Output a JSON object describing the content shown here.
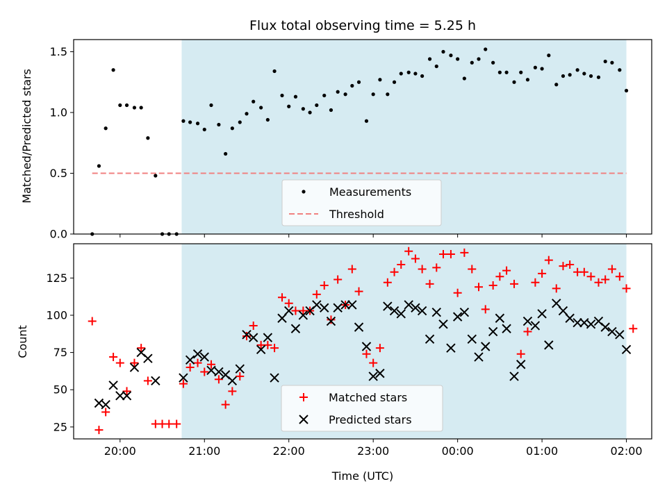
{
  "chart_data": {
    "title": "Flux total observing time = 5.25 h",
    "xlabel": "Time (UTC)",
    "x_unit": "hours UTC (past midnight continues as 24+)",
    "xlim": [
      19.45,
      26.3
    ],
    "x_ticks": [
      20,
      21,
      22,
      23,
      24,
      25,
      26
    ],
    "x_tick_labels": [
      "20:00",
      "21:00",
      "22:00",
      "23:00",
      "00:00",
      "01:00",
      "02:00"
    ],
    "shaded_span": {
      "x_start": 20.73,
      "x_end": 26.0,
      "color": "#add8e6"
    },
    "colors": {
      "shade": "#add8e6",
      "measurements": "#000000",
      "threshold": "#f08080",
      "matched": "#ff0000",
      "predicted": "#000000"
    },
    "panels": [
      {
        "type": "scatter",
        "ylabel": "Matched/Predicted stars",
        "ylim": [
          0,
          1.6
        ],
        "y_ticks": [
          0.0,
          0.5,
          1.0,
          1.5
        ],
        "y_tick_labels": [
          "0.0",
          "0.5",
          "1.0",
          "1.5"
        ],
        "legend": "lower center",
        "series": [
          {
            "name": "Measurements",
            "marker": "dot",
            "points": [
              [
                19.67,
                0.0
              ],
              [
                19.75,
                0.56
              ],
              [
                19.83,
                0.87
              ],
              [
                19.92,
                1.35
              ],
              [
                20.0,
                1.06
              ],
              [
                20.08,
                1.06
              ],
              [
                20.17,
                1.04
              ],
              [
                20.25,
                1.04
              ],
              [
                20.33,
                0.79
              ],
              [
                20.42,
                0.48
              ],
              [
                20.5,
                0.0
              ],
              [
                20.58,
                0.0
              ],
              [
                20.67,
                0.0
              ],
              [
                20.75,
                0.93
              ],
              [
                20.83,
                0.92
              ],
              [
                20.92,
                0.91
              ],
              [
                21.0,
                0.86
              ],
              [
                21.08,
                1.06
              ],
              [
                21.17,
                0.9
              ],
              [
                21.25,
                0.66
              ],
              [
                21.33,
                0.87
              ],
              [
                21.42,
                0.92
              ],
              [
                21.5,
                0.99
              ],
              [
                21.58,
                1.09
              ],
              [
                21.67,
                1.04
              ],
              [
                21.75,
                0.94
              ],
              [
                21.83,
                1.34
              ],
              [
                21.92,
                1.14
              ],
              [
                22.0,
                1.05
              ],
              [
                22.08,
                1.13
              ],
              [
                22.17,
                1.03
              ],
              [
                22.25,
                1.0
              ],
              [
                22.33,
                1.06
              ],
              [
                22.42,
                1.14
              ],
              [
                22.5,
                1.02
              ],
              [
                22.58,
                1.17
              ],
              [
                22.67,
                1.15
              ],
              [
                22.75,
                1.22
              ],
              [
                22.83,
                1.25
              ],
              [
                22.92,
                0.93
              ],
              [
                23.0,
                1.15
              ],
              [
                23.08,
                1.27
              ],
              [
                23.17,
                1.15
              ],
              [
                23.25,
                1.25
              ],
              [
                23.33,
                1.32
              ],
              [
                23.42,
                1.33
              ],
              [
                23.5,
                1.32
              ],
              [
                23.58,
                1.3
              ],
              [
                23.67,
                1.44
              ],
              [
                23.75,
                1.38
              ],
              [
                23.83,
                1.5
              ],
              [
                23.92,
                1.47
              ],
              [
                24.0,
                1.44
              ],
              [
                24.08,
                1.28
              ],
              [
                24.17,
                1.41
              ],
              [
                24.25,
                1.44
              ],
              [
                24.33,
                1.52
              ],
              [
                24.42,
                1.41
              ],
              [
                24.5,
                1.33
              ],
              [
                24.58,
                1.33
              ],
              [
                24.67,
                1.25
              ],
              [
                24.75,
                1.33
              ],
              [
                24.83,
                1.27
              ],
              [
                24.92,
                1.37
              ],
              [
                25.0,
                1.36
              ],
              [
                25.08,
                1.47
              ],
              [
                25.17,
                1.23
              ],
              [
                25.25,
                1.3
              ],
              [
                25.33,
                1.31
              ],
              [
                25.42,
                1.35
              ],
              [
                25.5,
                1.32
              ],
              [
                25.58,
                1.3
              ],
              [
                25.67,
                1.29
              ],
              [
                25.75,
                1.42
              ],
              [
                25.83,
                1.41
              ],
              [
                25.92,
                1.35
              ],
              [
                26.0,
                1.18
              ]
            ]
          },
          {
            "name": "Threshold",
            "marker": "dashed-line",
            "points": [
              [
                19.67,
                0.5
              ],
              [
                26.0,
                0.5
              ]
            ]
          }
        ]
      },
      {
        "type": "scatter",
        "ylabel": "Count",
        "ylim": [
          17,
          148
        ],
        "y_ticks": [
          25,
          50,
          75,
          100,
          125
        ],
        "y_tick_labels": [
          "25",
          "50",
          "75",
          "100",
          "125"
        ],
        "legend": "lower center",
        "series": [
          {
            "name": "Matched stars",
            "marker": "plus",
            "points": [
              [
                19.67,
                96
              ],
              [
                19.75,
                23
              ],
              [
                19.83,
                35
              ],
              [
                19.92,
                72
              ],
              [
                20.0,
                68
              ],
              [
                20.08,
                49
              ],
              [
                20.17,
                68
              ],
              [
                20.25,
                78
              ],
              [
                20.33,
                56
              ],
              [
                20.42,
                27
              ],
              [
                20.5,
                27
              ],
              [
                20.58,
                27
              ],
              [
                20.67,
                27
              ],
              [
                20.75,
                54
              ],
              [
                20.83,
                65
              ],
              [
                20.92,
                68
              ],
              [
                21.0,
                62
              ],
              [
                21.08,
                67
              ],
              [
                21.17,
                57
              ],
              [
                21.25,
                40
              ],
              [
                21.33,
                49
              ],
              [
                21.42,
                59
              ],
              [
                21.5,
                86
              ],
              [
                21.58,
                93
              ],
              [
                21.67,
                80
              ],
              [
                21.75,
                80
              ],
              [
                21.83,
                78
              ],
              [
                21.92,
                112
              ],
              [
                22.0,
                108
              ],
              [
                22.08,
                103
              ],
              [
                22.17,
                103
              ],
              [
                22.25,
                103
              ],
              [
                22.33,
                114
              ],
              [
                22.42,
                120
              ],
              [
                22.5,
                97
              ],
              [
                22.58,
                124
              ],
              [
                22.67,
                107
              ],
              [
                22.75,
                131
              ],
              [
                22.83,
                116
              ],
              [
                22.92,
                74
              ],
              [
                23.0,
                68
              ],
              [
                23.08,
                78
              ],
              [
                23.17,
                122
              ],
              [
                23.25,
                129
              ],
              [
                23.33,
                134
              ],
              [
                23.42,
                143
              ],
              [
                23.5,
                138
              ],
              [
                23.58,
                131
              ],
              [
                23.67,
                121
              ],
              [
                23.75,
                132
              ],
              [
                23.83,
                141
              ],
              [
                23.92,
                141
              ],
              [
                24.0,
                115
              ],
              [
                24.08,
                142
              ],
              [
                24.17,
                131
              ],
              [
                24.25,
                119
              ],
              [
                24.33,
                104
              ],
              [
                24.42,
                120
              ],
              [
                24.5,
                126
              ],
              [
                24.58,
                130
              ],
              [
                24.67,
                121
              ],
              [
                24.75,
                74
              ],
              [
                24.83,
                89
              ],
              [
                24.92,
                122
              ],
              [
                25.0,
                128
              ],
              [
                25.08,
                137
              ],
              [
                25.17,
                118
              ],
              [
                25.25,
                133
              ],
              [
                25.33,
                134
              ],
              [
                25.42,
                129
              ],
              [
                25.5,
                129
              ],
              [
                25.58,
                126
              ],
              [
                25.67,
                122
              ],
              [
                25.75,
                124
              ],
              [
                25.83,
                131
              ],
              [
                25.92,
                126
              ],
              [
                26.0,
                118
              ],
              [
                26.08,
                91
              ]
            ]
          },
          {
            "name": "Predicted stars",
            "marker": "x",
            "points": [
              [
                19.75,
                41
              ],
              [
                19.83,
                40
              ],
              [
                19.92,
                53
              ],
              [
                20.0,
                46
              ],
              [
                20.08,
                46
              ],
              [
                20.17,
                65
              ],
              [
                20.25,
                75
              ],
              [
                20.33,
                71
              ],
              [
                20.42,
                56
              ],
              [
                20.75,
                58
              ],
              [
                20.83,
                70
              ],
              [
                20.92,
                74
              ],
              [
                21.0,
                72
              ],
              [
                21.08,
                63
              ],
              [
                21.17,
                62
              ],
              [
                21.25,
                60
              ],
              [
                21.33,
                56
              ],
              [
                21.42,
                64
              ],
              [
                21.5,
                87
              ],
              [
                21.58,
                85
              ],
              [
                21.67,
                77
              ],
              [
                21.75,
                85
              ],
              [
                21.83,
                58
              ],
              [
                21.92,
                98
              ],
              [
                22.0,
                103
              ],
              [
                22.08,
                91
              ],
              [
                22.17,
                100
              ],
              [
                22.25,
                103
              ],
              [
                22.33,
                107
              ],
              [
                22.42,
                105
              ],
              [
                22.5,
                96
              ],
              [
                22.58,
                105
              ],
              [
                22.67,
                107
              ],
              [
                22.75,
                107
              ],
              [
                22.83,
                92
              ],
              [
                22.92,
                79
              ],
              [
                23.0,
                59
              ],
              [
                23.08,
                61
              ],
              [
                23.17,
                106
              ],
              [
                23.25,
                103
              ],
              [
                23.33,
                101
              ],
              [
                23.42,
                107
              ],
              [
                23.5,
                105
              ],
              [
                23.58,
                103
              ],
              [
                23.67,
                84
              ],
              [
                23.75,
                102
              ],
              [
                23.83,
                94
              ],
              [
                23.92,
                78
              ],
              [
                24.0,
                99
              ],
              [
                24.08,
                102
              ],
              [
                24.17,
                84
              ],
              [
                24.25,
                72
              ],
              [
                24.33,
                79
              ],
              [
                24.42,
                89
              ],
              [
                24.5,
                98
              ],
              [
                24.58,
                91
              ],
              [
                24.67,
                59
              ],
              [
                24.75,
                67
              ],
              [
                24.83,
                96
              ],
              [
                24.92,
                93
              ],
              [
                25.0,
                101
              ],
              [
                25.08,
                80
              ],
              [
                25.17,
                108
              ],
              [
                25.25,
                103
              ],
              [
                25.33,
                98
              ],
              [
                25.42,
                95
              ],
              [
                25.5,
                95
              ],
              [
                25.58,
                94
              ],
              [
                25.67,
                96
              ],
              [
                25.75,
                92
              ],
              [
                25.83,
                89
              ],
              [
                25.92,
                87
              ],
              [
                26.0,
                77
              ]
            ]
          }
        ]
      }
    ]
  }
}
